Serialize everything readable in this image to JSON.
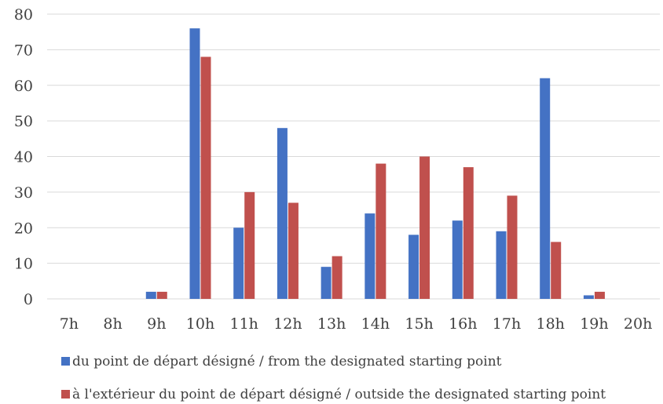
{
  "chart_data": {
    "type": "bar",
    "title": "",
    "xlabel": "",
    "ylabel": "",
    "categories": [
      "7h",
      "8h",
      "9h",
      "10h",
      "11h",
      "12h",
      "13h",
      "14h",
      "15h",
      "16h",
      "17h",
      "18h",
      "19h",
      "20h"
    ],
    "ylim": [
      0,
      80
    ],
    "yticks": [
      "0",
      "10",
      "20",
      "30",
      "40",
      "50",
      "60",
      "70",
      "80"
    ],
    "grid": true,
    "legend_position": "bottom",
    "series": [
      {
        "name": "du point de départ désigné / from the designated starting point",
        "color": "#4472C4",
        "values": [
          0,
          0,
          2,
          76,
          20,
          48,
          9,
          24,
          18,
          22,
          19,
          62,
          1,
          0
        ]
      },
      {
        "name": "à l'extérieur du point de départ désigné / outside the designated starting point",
        "color": "#C0504D",
        "values": [
          0,
          0,
          2,
          68,
          30,
          27,
          12,
          38,
          40,
          37,
          29,
          16,
          2,
          0
        ]
      }
    ]
  }
}
